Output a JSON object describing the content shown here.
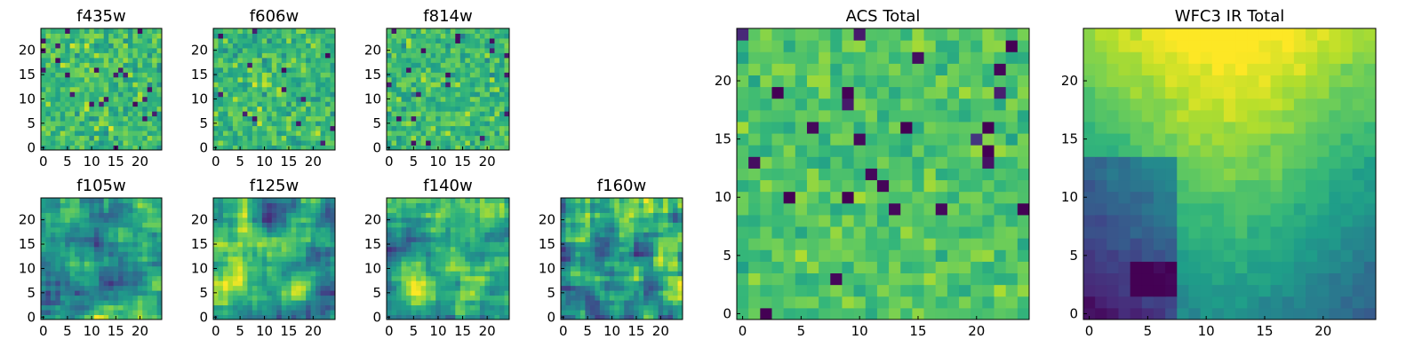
{
  "chart_data": [
    {
      "id": "f435w",
      "type": "heatmap",
      "title": "f435w",
      "grid_size": 25,
      "xlim": [
        0,
        24
      ],
      "ylim": [
        0,
        24
      ],
      "xticks": [
        0,
        5,
        10,
        15,
        20
      ],
      "yticks": [
        0,
        5,
        10,
        15,
        20
      ],
      "colormap": "viridis",
      "pattern": "noise",
      "seed": 11
    },
    {
      "id": "f606w",
      "type": "heatmap",
      "title": "f606w",
      "grid_size": 25,
      "xlim": [
        0,
        24
      ],
      "ylim": [
        0,
        24
      ],
      "xticks": [
        0,
        5,
        10,
        15,
        20
      ],
      "yticks": [
        0,
        5,
        10,
        15,
        20
      ],
      "colormap": "viridis",
      "pattern": "noise",
      "seed": 23
    },
    {
      "id": "f814w",
      "type": "heatmap",
      "title": "f814w",
      "grid_size": 25,
      "xlim": [
        0,
        24
      ],
      "ylim": [
        0,
        24
      ],
      "xticks": [
        0,
        5,
        10,
        15,
        20
      ],
      "yticks": [
        0,
        5,
        10,
        15,
        20
      ],
      "colormap": "viridis",
      "pattern": "noise",
      "seed": 37
    },
    {
      "id": "f105w",
      "type": "heatmap",
      "title": "f105w",
      "grid_size": 25,
      "xlim": [
        0,
        24
      ],
      "ylim": [
        0,
        24
      ],
      "xticks": [
        0,
        5,
        10,
        15,
        20
      ],
      "yticks": [
        0,
        5,
        10,
        15,
        20
      ],
      "colormap": "viridis",
      "pattern": "smooth",
      "seed": 41
    },
    {
      "id": "f125w",
      "type": "heatmap",
      "title": "f125w",
      "grid_size": 25,
      "xlim": [
        0,
        24
      ],
      "ylim": [
        0,
        24
      ],
      "xticks": [
        0,
        5,
        10,
        15,
        20
      ],
      "yticks": [
        0,
        5,
        10,
        15,
        20
      ],
      "colormap": "viridis",
      "pattern": "smooth",
      "seed": 53
    },
    {
      "id": "f140w",
      "type": "heatmap",
      "title": "f140w",
      "grid_size": 25,
      "xlim": [
        0,
        24
      ],
      "ylim": [
        0,
        24
      ],
      "xticks": [
        0,
        5,
        10,
        15,
        20
      ],
      "yticks": [
        0,
        5,
        10,
        15,
        20
      ],
      "colormap": "viridis",
      "pattern": "smooth",
      "seed": 67
    },
    {
      "id": "f160w",
      "type": "heatmap",
      "title": "f160w",
      "grid_size": 25,
      "xlim": [
        0,
        24
      ],
      "ylim": [
        0,
        24
      ],
      "xticks": [
        0,
        5,
        10,
        15,
        20
      ],
      "yticks": [
        0,
        5,
        10,
        15,
        20
      ],
      "colormap": "viridis",
      "pattern": "smooth",
      "seed": 79
    },
    {
      "id": "acs-total",
      "type": "heatmap",
      "title": "ACS Total",
      "grid_size": 25,
      "xlim": [
        0,
        24
      ],
      "ylim": [
        0,
        24
      ],
      "xticks": [
        0,
        5,
        10,
        15,
        20
      ],
      "yticks": [
        0,
        5,
        10,
        15,
        20
      ],
      "colormap": "viridis",
      "pattern": "noise-bright",
      "seed": 97
    },
    {
      "id": "wfc3-ir-total",
      "type": "heatmap",
      "title": "WFC3 IR Total",
      "grid_size": 25,
      "xlim": [
        0,
        24
      ],
      "ylim": [
        0,
        24
      ],
      "xticks": [
        0,
        5,
        10,
        15,
        20
      ],
      "yticks": [
        0,
        5,
        10,
        15,
        20
      ],
      "colormap": "viridis",
      "pattern": "gradient",
      "seed": 113
    }
  ],
  "colors": {
    "viridis": [
      "#440154",
      "#482878",
      "#3e4989",
      "#31688e",
      "#26828e",
      "#1f9e89",
      "#35b779",
      "#6ece58",
      "#b5de2b",
      "#fde725"
    ]
  }
}
